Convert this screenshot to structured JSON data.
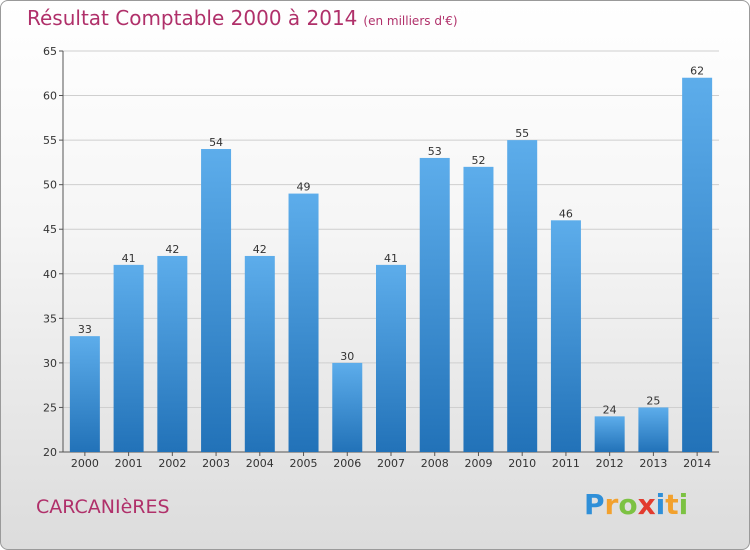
{
  "header": {
    "title": "Résultat Comptable 2000 à 2014",
    "subtitle": "(en milliers d'€)"
  },
  "footer": {
    "town": "CARCANIèRES",
    "logo": {
      "letters": [
        "P",
        "r",
        "o",
        "x",
        "i",
        "t",
        "i"
      ],
      "colors": [
        "#2f8fd8",
        "#f2a12e",
        "#7cc242",
        "#e23b2e",
        "#2f8fd8",
        "#f2a12e",
        "#7cc242"
      ]
    }
  },
  "chart_data": {
    "type": "bar",
    "title": "Résultat Comptable 2000 à 2014",
    "subtitle": "(en milliers d'€)",
    "categories": [
      "2000",
      "2001",
      "2002",
      "2003",
      "2004",
      "2005",
      "2006",
      "2007",
      "2008",
      "2009",
      "2010",
      "2011",
      "2012",
      "2013",
      "2014"
    ],
    "values": [
      33,
      41,
      42,
      54,
      42,
      49,
      30,
      41,
      53,
      52,
      55,
      46,
      24,
      25,
      62
    ],
    "ylim": [
      20,
      65
    ],
    "yticks": [
      20,
      25,
      30,
      35,
      40,
      45,
      50,
      55,
      60,
      65
    ],
    "grid": true,
    "bar_color": "#3d8fd6"
  }
}
